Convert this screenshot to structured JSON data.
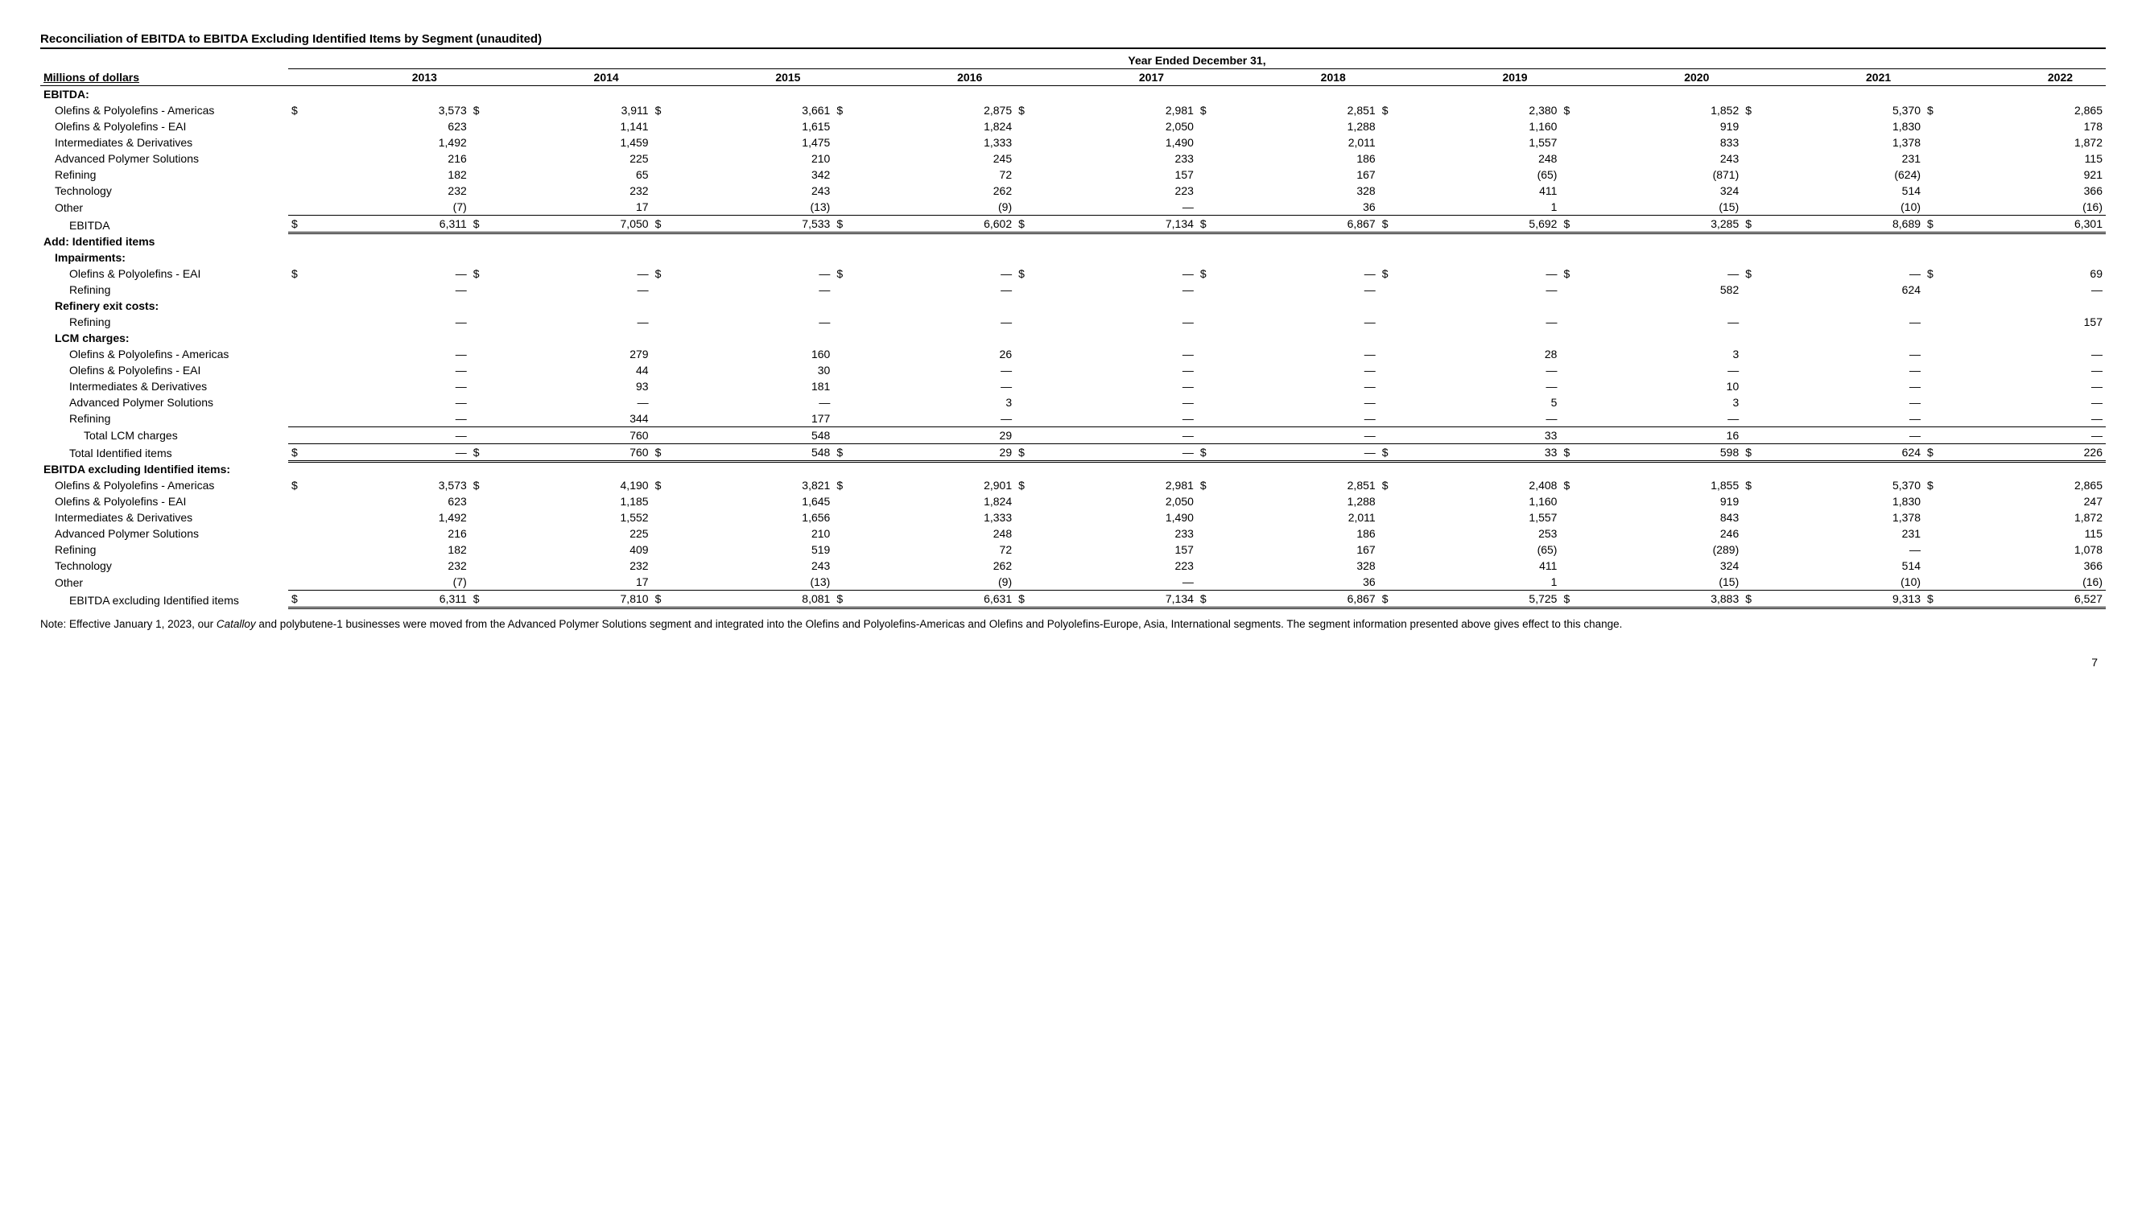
{
  "title": "Reconciliation of EBITDA to EBITDA Excluding Identified Items by Segment (unaudited)",
  "span_header": "Year Ended December 31,",
  "left_header": "Millions of dollars",
  "years": [
    "2013",
    "2014",
    "2015",
    "2016",
    "2017",
    "2018",
    "2019",
    "2020",
    "2021",
    "2022"
  ],
  "sections": {
    "ebitda_label": "EBITDA:",
    "add_label": "Add: Identified items",
    "impairments_label": "Impairments:",
    "refinery_exit_label": "Refinery exit costs:",
    "lcm_label": "LCM charges:",
    "ex_label": "EBITDA excluding Identified items:"
  },
  "rows": {
    "e_opa": {
      "label": "Olefins & Polyolefins - Americas",
      "sym": "$",
      "vals": [
        "3,573",
        "3,911",
        "3,661",
        "2,875",
        "2,981",
        "2,851",
        "2,380",
        "1,852",
        "5,370",
        "2,865"
      ]
    },
    "e_eai": {
      "label": "Olefins & Polyolefins - EAI",
      "vals": [
        "623",
        "1,141",
        "1,615",
        "1,824",
        "2,050",
        "1,288",
        "1,160",
        "919",
        "1,830",
        "178"
      ]
    },
    "e_id": {
      "label": "Intermediates & Derivatives",
      "vals": [
        "1,492",
        "1,459",
        "1,475",
        "1,333",
        "1,490",
        "2,011",
        "1,557",
        "833",
        "1,378",
        "1,872"
      ]
    },
    "e_aps": {
      "label": "Advanced Polymer Solutions",
      "vals": [
        "216",
        "225",
        "210",
        "245",
        "233",
        "186",
        "248",
        "243",
        "231",
        "115"
      ]
    },
    "e_ref": {
      "label": "Refining",
      "vals": [
        "182",
        "65",
        "342",
        "72",
        "157",
        "167",
        "(65)",
        "(871)",
        "(624)",
        "921"
      ]
    },
    "e_tech": {
      "label": "Technology",
      "vals": [
        "232",
        "232",
        "243",
        "262",
        "223",
        "328",
        "411",
        "324",
        "514",
        "366"
      ]
    },
    "e_other": {
      "label": "Other",
      "vals": [
        "(7)",
        "17",
        "(13)",
        "(9)",
        "—",
        "36",
        "1",
        "(15)",
        "(10)",
        "(16)"
      ]
    },
    "e_total": {
      "label": "EBITDA",
      "sym": "$",
      "vals": [
        "6,311",
        "7,050",
        "7,533",
        "6,602",
        "7,134",
        "6,867",
        "5,692",
        "3,285",
        "8,689",
        "6,301"
      ]
    },
    "imp_eai": {
      "label": "Olefins & Polyolefins - EAI",
      "sym": "$",
      "vals": [
        "—",
        "—",
        "—",
        "—",
        "—",
        "—",
        "—",
        "—",
        "—",
        "69"
      ]
    },
    "imp_ref": {
      "label": "Refining",
      "vals": [
        "—",
        "—",
        "—",
        "—",
        "—",
        "—",
        "—",
        "582",
        "624",
        "—"
      ]
    },
    "rex_ref": {
      "label": "Refining",
      "vals": [
        "—",
        "—",
        "—",
        "—",
        "—",
        "—",
        "—",
        "—",
        "—",
        "157"
      ]
    },
    "lcm_opa": {
      "label": "Olefins & Polyolefins - Americas",
      "vals": [
        "—",
        "279",
        "160",
        "26",
        "—",
        "—",
        "28",
        "3",
        "—",
        "—"
      ]
    },
    "lcm_eai": {
      "label": "Olefins & Polyolefins - EAI",
      "vals": [
        "—",
        "44",
        "30",
        "—",
        "—",
        "—",
        "—",
        "—",
        "—",
        "—"
      ]
    },
    "lcm_id": {
      "label": "Intermediates & Derivatives",
      "vals": [
        "—",
        "93",
        "181",
        "—",
        "—",
        "—",
        "—",
        "10",
        "—",
        "—"
      ]
    },
    "lcm_aps": {
      "label": "Advanced Polymer Solutions",
      "vals": [
        "—",
        "—",
        "—",
        "3",
        "—",
        "—",
        "5",
        "3",
        "—",
        "—"
      ]
    },
    "lcm_ref": {
      "label": "Refining",
      "vals": [
        "—",
        "344",
        "177",
        "—",
        "—",
        "—",
        "—",
        "—",
        "—",
        "—"
      ]
    },
    "lcm_tot": {
      "label": "Total LCM charges",
      "vals": [
        "—",
        "760",
        "548",
        "29",
        "—",
        "—",
        "33",
        "16",
        "—",
        "—"
      ]
    },
    "id_tot": {
      "label": "Total Identified items",
      "sym": "$",
      "vals": [
        "—",
        "760",
        "548",
        "29",
        "—",
        "—",
        "33",
        "598",
        "624",
        "226"
      ]
    },
    "x_opa": {
      "label": "Olefins & Polyolefins - Americas",
      "sym": "$",
      "vals": [
        "3,573",
        "4,190",
        "3,821",
        "2,901",
        "2,981",
        "2,851",
        "2,408",
        "1,855",
        "5,370",
        "2,865"
      ]
    },
    "x_eai": {
      "label": "Olefins & Polyolefins - EAI",
      "vals": [
        "623",
        "1,185",
        "1,645",
        "1,824",
        "2,050",
        "1,288",
        "1,160",
        "919",
        "1,830",
        "247"
      ]
    },
    "x_id": {
      "label": "Intermediates & Derivatives",
      "vals": [
        "1,492",
        "1,552",
        "1,656",
        "1,333",
        "1,490",
        "2,011",
        "1,557",
        "843",
        "1,378",
        "1,872"
      ]
    },
    "x_aps": {
      "label": "Advanced Polymer Solutions",
      "vals": [
        "216",
        "225",
        "210",
        "248",
        "233",
        "186",
        "253",
        "246",
        "231",
        "115"
      ]
    },
    "x_ref": {
      "label": "Refining",
      "vals": [
        "182",
        "409",
        "519",
        "72",
        "157",
        "167",
        "(65)",
        "(289)",
        "—",
        "1,078"
      ]
    },
    "x_tech": {
      "label": "Technology",
      "vals": [
        "232",
        "232",
        "243",
        "262",
        "223",
        "328",
        "411",
        "324",
        "514",
        "366"
      ]
    },
    "x_other": {
      "label": "Other",
      "vals": [
        "(7)",
        "17",
        "(13)",
        "(9)",
        "—",
        "36",
        "1",
        "(15)",
        "(10)",
        "(16)"
      ]
    },
    "x_total": {
      "label": "EBITDA excluding Identified items",
      "sym": "$",
      "vals": [
        "6,311",
        "7,810",
        "8,081",
        "6,631",
        "7,134",
        "6,867",
        "5,725",
        "3,883",
        "9,313",
        "6,527"
      ]
    }
  },
  "note_prefix": "Note: Effective January 1, 2023, our ",
  "note_italic": "Catalloy",
  "note_suffix": " and polybutene-1 businesses were moved from the Advanced Polymer Solutions segment and integrated into the Olefins and Polyolefins-Americas and Olefins and Polyolefins-Europe, Asia, International segments. The segment information presented above gives effect to this change.",
  "page_num": "7"
}
